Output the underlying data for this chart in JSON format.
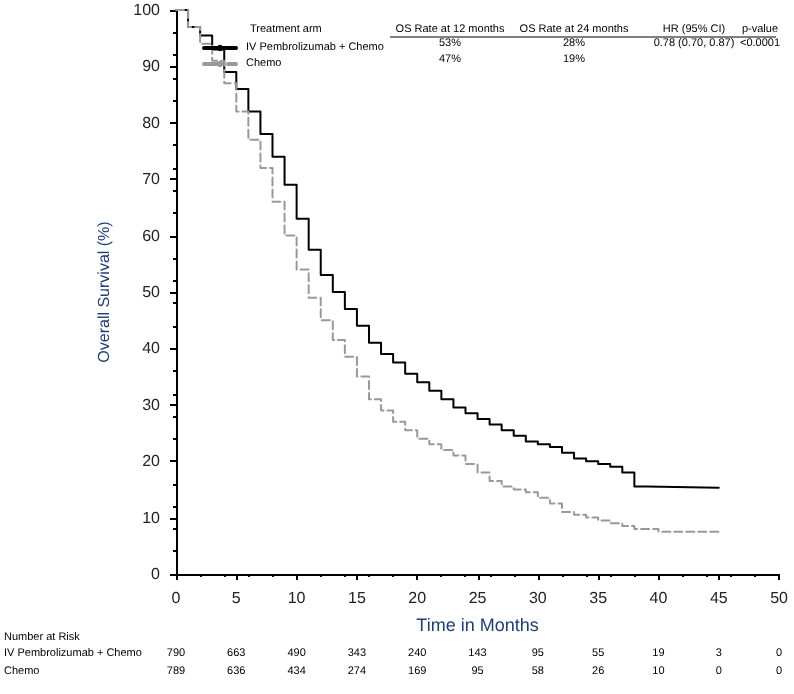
{
  "chart_data": {
    "type": "step",
    "xlabel": "Time in Months",
    "ylabel": "Overall Survival (%)",
    "xlim": [
      0,
      50
    ],
    "xticks": [
      0,
      5,
      10,
      15,
      20,
      25,
      30,
      35,
      40,
      45,
      50
    ],
    "ylim": [
      0,
      100
    ],
    "yticks": [
      0,
      10,
      20,
      30,
      40,
      50,
      60,
      70,
      80,
      90,
      100
    ],
    "grid": false,
    "legend": "top",
    "marker": "none",
    "series": [
      {
        "name": "IV Pembrolizumab + Chemo",
        "color": "#000000",
        "line_style": "solid",
        "x": [
          0,
          1,
          2,
          3,
          4,
          5,
          6,
          7,
          8,
          9,
          10,
          11,
          12,
          13,
          14,
          15,
          16,
          17,
          18,
          19,
          20,
          21,
          22,
          23,
          24,
          25,
          26,
          27,
          28,
          29,
          30,
          31,
          32,
          33,
          34,
          35,
          36,
          37,
          38,
          39,
          45
        ],
        "values": [
          100,
          97,
          95.5,
          93,
          89,
          86,
          82,
          78,
          74,
          69,
          63,
          57.5,
          53,
          50,
          47,
          44,
          41,
          39,
          37.5,
          35.5,
          34,
          32.5,
          31,
          29.5,
          28.5,
          27.5,
          26.5,
          25.5,
          24.5,
          23.5,
          23,
          22.5,
          21.5,
          20.5,
          20,
          19.5,
          19,
          18,
          15.5,
          15.3,
          15.3
        ]
      },
      {
        "name": "Chemo",
        "color": "#999999",
        "line_style": "dashed",
        "x": [
          0,
          1,
          2,
          3,
          4,
          5,
          6,
          7,
          8,
          9,
          10,
          11,
          12,
          13,
          14,
          15,
          16,
          17,
          18,
          19,
          20,
          21,
          22,
          23,
          24,
          25,
          26,
          27,
          28,
          29,
          30,
          31,
          32,
          33,
          34,
          35,
          36,
          37,
          38,
          40,
          45
        ],
        "values": [
          100,
          97,
          94,
          91,
          87,
          82,
          77,
          72,
          66,
          60,
          54,
          49,
          45,
          41.5,
          38.5,
          35,
          31,
          29,
          27,
          25.5,
          24,
          23,
          22,
          21,
          19.5,
          18,
          16.5,
          15.5,
          15,
          14.5,
          13.5,
          12.5,
          11,
          10.5,
          10,
          9.5,
          9,
          8.5,
          8,
          7.5,
          7.5
        ]
      }
    ],
    "annotations": [
      "Treatment arm",
      "OS Rate at 12 months",
      "OS Rate at 24 months",
      "HR (95% CI)",
      "p-value",
      "53%",
      "28%",
      "0.78 (0.70, 0.87)",
      "<0.0001",
      "47%",
      "19%",
      "Number at Risk",
      "IV Pembrolizumab + Chemo",
      "790",
      "663",
      "490",
      "343",
      "240",
      "143",
      "95",
      "55",
      "19",
      "3",
      "0",
      "Chemo",
      "789",
      "636",
      "434",
      "274",
      "169",
      "95",
      "58",
      "26",
      "10",
      "0",
      "0"
    ]
  }
}
